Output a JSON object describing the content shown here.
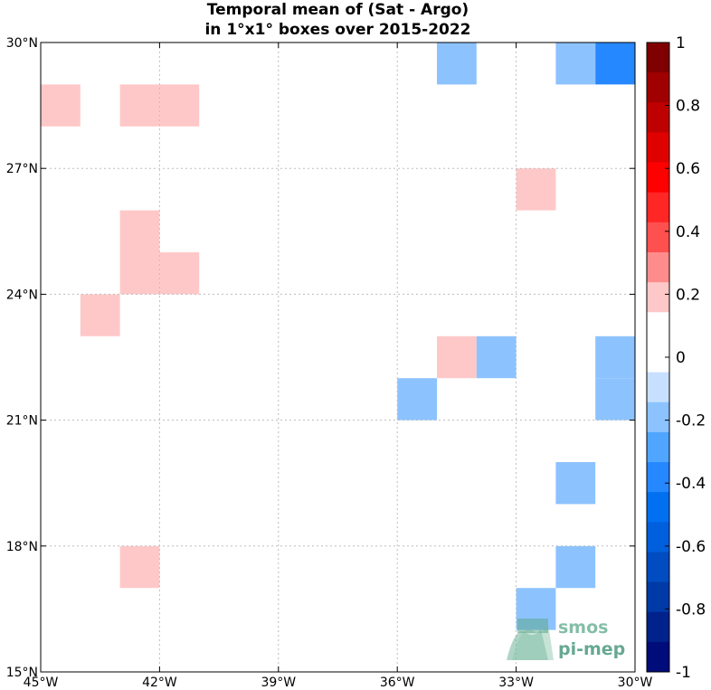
{
  "title": {
    "line1": "Temporal mean of (Sat - Argo)",
    "line2": "in 1°x1° boxes over 2015-2022"
  },
  "chart_data": {
    "type": "heatmap",
    "lon_range": [
      -45,
      -30
    ],
    "lat_range": [
      15,
      30
    ],
    "x_ticks": [
      {
        "value": -45,
        "label": "45°W"
      },
      {
        "value": -42,
        "label": "42°W"
      },
      {
        "value": -39,
        "label": "39°W"
      },
      {
        "value": -36,
        "label": "36°W"
      },
      {
        "value": -33,
        "label": "33°W"
      },
      {
        "value": -30,
        "label": "30°W"
      }
    ],
    "y_ticks": [
      {
        "value": 15,
        "label": "15°N"
      },
      {
        "value": 18,
        "label": "18°N"
      },
      {
        "value": 21,
        "label": "21°N"
      },
      {
        "value": 24,
        "label": "24°N"
      },
      {
        "value": 27,
        "label": "27°N"
      },
      {
        "value": 30,
        "label": "30°N"
      }
    ],
    "grid": true,
    "colorbar": {
      "range": [
        -1,
        1
      ],
      "ticks": [
        1,
        0.8,
        0.6,
        0.4,
        0.2,
        0,
        -0.2,
        -0.4,
        -0.6,
        -0.8,
        -1
      ],
      "tick_labels": [
        "1",
        "0.8",
        "0.6",
        "0.4",
        "0.2",
        "0",
        "-0.2",
        "-0.4",
        "-0.6",
        "-0.8",
        "-1"
      ],
      "colors_top_to_bottom": [
        "#7f0000",
        "#a00000",
        "#bf0000",
        "#df0000",
        "#ff0000",
        "#ff2626",
        "#ff5050",
        "#ff8c8c",
        "#ffc8c8",
        "#ffffff",
        "#ffffff",
        "#c8e0ff",
        "#8cc3ff",
        "#50a6ff",
        "#2688ff",
        "#0070f0",
        "#005fdc",
        "#004cc0",
        "#003aa6",
        "#00228a",
        "#000c7a"
      ]
    },
    "cells": [
      {
        "lon": -35,
        "lat": 29,
        "value": -0.15
      },
      {
        "lon": -32,
        "lat": 29,
        "value": -0.15
      },
      {
        "lon": -31,
        "lat": 29,
        "value": -0.4
      },
      {
        "lon": -45,
        "lat": 28,
        "value": 0.15
      },
      {
        "lon": -43,
        "lat": 28,
        "value": 0.15
      },
      {
        "lon": -42,
        "lat": 28,
        "value": 0.15
      },
      {
        "lon": -33,
        "lat": 26,
        "value": 0.15
      },
      {
        "lon": -43,
        "lat": 25,
        "value": 0.15
      },
      {
        "lon": -43,
        "lat": 24,
        "value": 0.15
      },
      {
        "lon": -42,
        "lat": 24,
        "value": 0.15
      },
      {
        "lon": -44,
        "lat": 23,
        "value": 0.15
      },
      {
        "lon": -35,
        "lat": 22,
        "value": 0.15
      },
      {
        "lon": -34,
        "lat": 22,
        "value": -0.15
      },
      {
        "lon": -31,
        "lat": 22,
        "value": -0.15
      },
      {
        "lon": -36,
        "lat": 21,
        "value": -0.15
      },
      {
        "lon": -31,
        "lat": 21,
        "value": -0.15
      },
      {
        "lon": -32,
        "lat": 19,
        "value": -0.15
      },
      {
        "lon": -43,
        "lat": 17,
        "value": 0.15
      },
      {
        "lon": -32,
        "lat": 17,
        "value": -0.15
      },
      {
        "lon": -33,
        "lat": 16,
        "value": -0.15
      }
    ]
  },
  "logo": {
    "line1": "smos",
    "line2": "pi-mep"
  }
}
